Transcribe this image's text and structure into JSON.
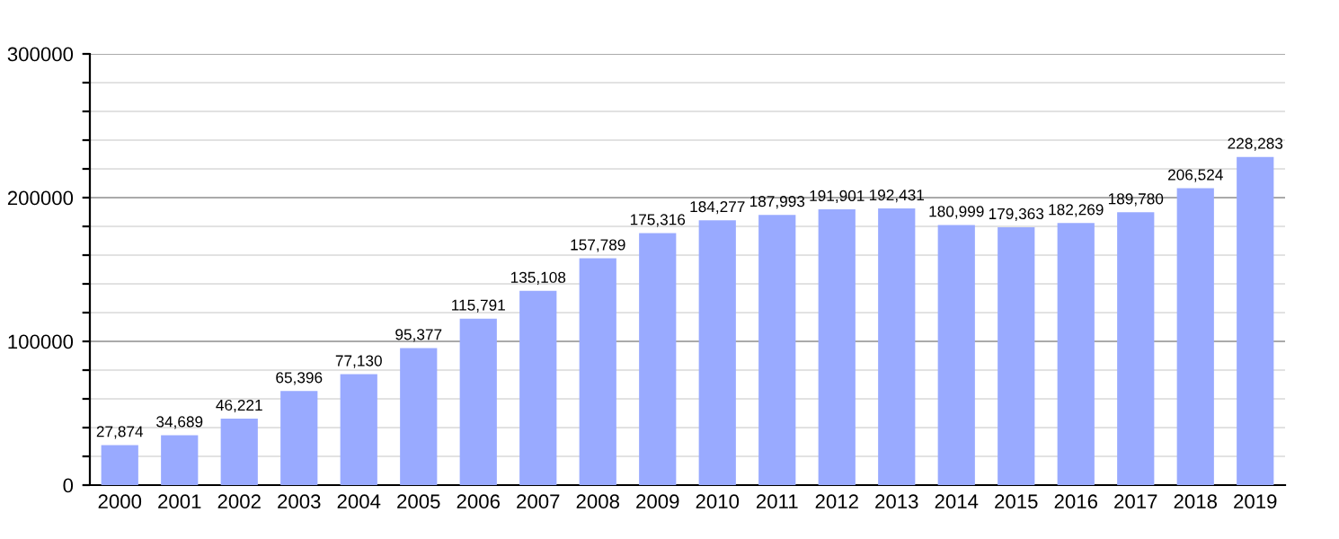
{
  "chart_data": {
    "type": "bar",
    "categories": [
      "2000",
      "2001",
      "2002",
      "2003",
      "2004",
      "2005",
      "2006",
      "2007",
      "2008",
      "2009",
      "2010",
      "2011",
      "2012",
      "2013",
      "2014",
      "2015",
      "2016",
      "2017",
      "2018",
      "2019"
    ],
    "values": [
      27874,
      34689,
      46221,
      65396,
      77130,
      95377,
      115791,
      135108,
      157789,
      175316,
      184277,
      187993,
      191901,
      192431,
      180999,
      179363,
      182269,
      189780,
      206524,
      228283
    ],
    "value_labels": [
      "27,874",
      "34,689",
      "46,221",
      "65,396",
      "77,130",
      "95,377",
      "115,791",
      "135,108",
      "157,789",
      "175,316",
      "184,277",
      "187,993",
      "191,901",
      "192,431",
      "180,999",
      "179,363",
      "182,269",
      "189,780",
      "206,524",
      "228,283"
    ],
    "color": "#99aaff",
    "ylim": [
      0,
      300000
    ],
    "yticks": [
      0,
      {
        "value": 20000,
        "label": null
      },
      {
        "value": 40000,
        "label": null
      },
      {
        "value": 60000,
        "label": null
      },
      {
        "value": 80000,
        "label": null
      },
      100000,
      {
        "value": 120000,
        "label": null
      },
      {
        "value": 140000,
        "label": null
      },
      {
        "value": 160000,
        "label": null
      },
      {
        "value": 180000,
        "label": null
      },
      200000,
      {
        "value": 220000,
        "label": null
      },
      {
        "value": 240000,
        "label": null
      },
      {
        "value": 260000,
        "label": null
      },
      {
        "value": 280000,
        "label": null
      },
      300000
    ],
    "grid": "y"
  }
}
